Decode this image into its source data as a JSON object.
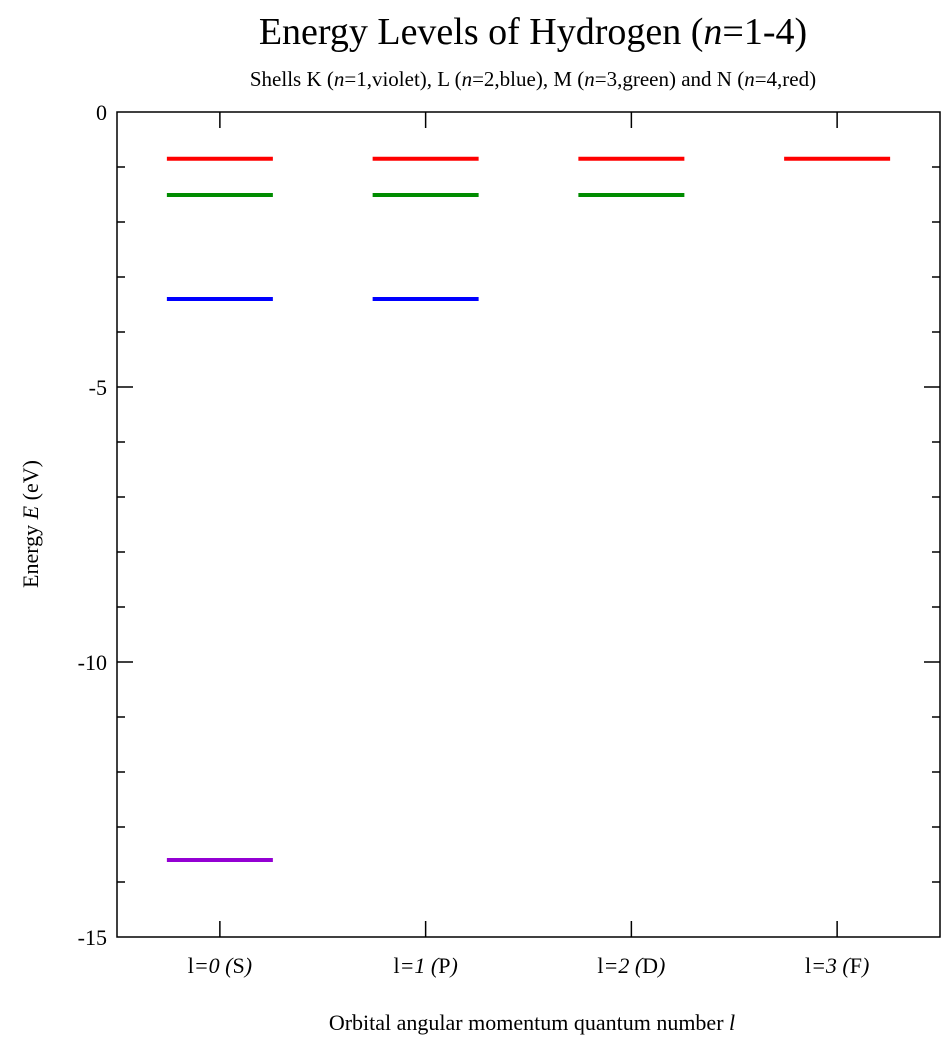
{
  "chart_data": {
    "type": "line",
    "title": "Energy Levels of Hydrogen (n=1-4)",
    "title_parts": [
      "Energy Levels of Hydrogen (",
      "n",
      "=1-4)"
    ],
    "subtitle": "Shells K (n=1,violet), L (n=2,blue), M (n=3,green) and N (n=4,red)",
    "subtitle_parts": [
      "Shells K (",
      "n",
      "=1,violet), L (",
      "n",
      "=2,blue), M (",
      "n",
      "=3,green) and N (",
      "n",
      "=4,red)"
    ],
    "ylabel": "Energy E (eV)",
    "ylabel_parts": [
      "Energy ",
      "E",
      " (eV)"
    ],
    "xlabel": "Orbital angular momentum quantum number l",
    "xlabel_parts": [
      "Orbital angular momentum quantum number ",
      "l"
    ],
    "ylim": [
      -15,
      0
    ],
    "y_major_ticks": [
      0,
      -5,
      -10,
      -15
    ],
    "y_minor_step": 1,
    "categories": [
      {
        "label": "l=0 (S)",
        "parts": [
          "l",
          "=0 (",
          "S",
          ")"
        ]
      },
      {
        "label": "l=1 (P)",
        "parts": [
          "l",
          "=1 (",
          "P",
          ")"
        ]
      },
      {
        "label": "l=2 (D)",
        "parts": [
          "l",
          "=2 (",
          "D",
          ")"
        ]
      },
      {
        "label": "l=3 (F)",
        "parts": [
          "l",
          "=3 (",
          "F",
          ")"
        ]
      }
    ],
    "series": [
      {
        "shell": "K",
        "n": 1,
        "color": "#9400d3",
        "energy": -13.6,
        "l_values": [
          0
        ]
      },
      {
        "shell": "L",
        "n": 2,
        "color": "#0000ff",
        "energy": -3.4,
        "l_values": [
          0,
          1
        ]
      },
      {
        "shell": "M",
        "n": 3,
        "color": "#008c00",
        "energy": -1.51,
        "l_values": [
          0,
          1,
          2
        ]
      },
      {
        "shell": "N",
        "n": 4,
        "color": "#ff0000",
        "energy": -0.85,
        "l_values": [
          0,
          1,
          2,
          3
        ]
      }
    ],
    "grid": false,
    "legend": "none"
  }
}
